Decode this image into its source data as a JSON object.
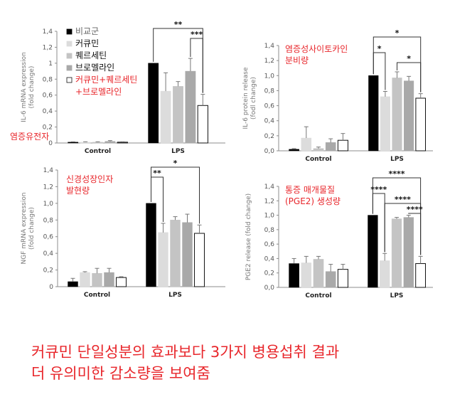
{
  "colors": {
    "black": "#111111",
    "series": [
      "#000000",
      "#dcdcdc",
      "#c4c4c4",
      "#a9a9a9",
      "#ffffff"
    ],
    "accent_red": "#e8262b",
    "axis": "#8c8c8c",
    "text": "#222222"
  },
  "legend": {
    "series_names": [
      "비교군",
      "커큐민",
      "퀘르세틴",
      "브로멜라인",
      "커큐민+퀘르세틴",
      "+브로멜라인"
    ]
  },
  "chart_data": [
    {
      "type": "bar",
      "ylabel_line1": "IL-6 mRNA expression",
      "ylabel_line2": "(fold change)",
      "annotation": [
        "염증유전자"
      ],
      "categories": [
        "Control",
        "LPS"
      ],
      "ticks": [
        "0",
        "0,2",
        "0,4",
        "0,6",
        "0,8",
        "1",
        "1,2",
        "1,4"
      ],
      "ylim": [
        0,
        1.4
      ],
      "series": [
        {
          "values": [
            0.01,
            1.0
          ],
          "errors": [
            0.005,
            0.0
          ]
        },
        {
          "values": [
            0.01,
            0.65
          ],
          "errors": [
            0.005,
            0.23
          ]
        },
        {
          "values": [
            0.01,
            0.71
          ],
          "errors": [
            0.005,
            0.06
          ]
        },
        {
          "values": [
            0.02,
            0.9
          ],
          "errors": [
            0.01,
            0.16
          ]
        },
        {
          "values": [
            0.01,
            0.47
          ],
          "errors": [
            0.005,
            0.14
          ]
        }
      ],
      "significance": [
        {
          "from": 0,
          "to": 4,
          "label": "**"
        },
        {
          "from": 3,
          "to": 4,
          "label": "***"
        }
      ]
    },
    {
      "type": "bar",
      "ylabel_line1": "IL-6 protein release",
      "ylabel_line2": "(fodl change)",
      "annotation": [
        "염증성사이토카인",
        "분비량"
      ],
      "categories": [
        "Control",
        "LPS"
      ],
      "ticks": [
        "0,0",
        "0,2",
        "0,4",
        "0,6",
        "0,8",
        "1,0",
        "1,2",
        "1,4"
      ],
      "ylim": [
        0,
        1.4
      ],
      "series": [
        {
          "values": [
            0.02,
            1.0
          ],
          "errors": [
            0.01,
            0.0
          ]
        },
        {
          "values": [
            0.17,
            0.72
          ],
          "errors": [
            0.15,
            0.07
          ]
        },
        {
          "values": [
            0.03,
            0.97
          ],
          "errors": [
            0.02,
            0.08
          ]
        },
        {
          "values": [
            0.11,
            0.93
          ],
          "errors": [
            0.05,
            0.06
          ]
        },
        {
          "values": [
            0.14,
            0.7
          ],
          "errors": [
            0.09,
            0.06
          ]
        }
      ],
      "significance": [
        {
          "from": 0,
          "to": 4,
          "label": "*"
        },
        {
          "from": 0,
          "to": 1,
          "label": "*"
        },
        {
          "from": 2,
          "to": 4,
          "label": "*"
        }
      ]
    },
    {
      "type": "bar",
      "ylabel_line1": "NGF mRNA expression",
      "ylabel_line2": "(fold change)",
      "annotation": [
        "신경성장인자",
        "발현량"
      ],
      "categories": [
        "Control",
        "LPS"
      ],
      "ticks": [
        "0",
        "0,2",
        "0,4",
        "0,6",
        "0,8",
        "1,0",
        "1,2",
        "1,4"
      ],
      "ylim": [
        0,
        1.4
      ],
      "series": [
        {
          "values": [
            0.06,
            1.0
          ],
          "errors": [
            0.04,
            0.0
          ]
        },
        {
          "values": [
            0.17,
            0.65
          ],
          "errors": [
            0.01,
            0.11
          ]
        },
        {
          "values": [
            0.16,
            0.8
          ],
          "errors": [
            0.06,
            0.04
          ]
        },
        {
          "values": [
            0.17,
            0.77
          ],
          "errors": [
            0.05,
            0.1
          ]
        },
        {
          "values": [
            0.11,
            0.64
          ],
          "errors": [
            0.01,
            0.1
          ]
        }
      ],
      "significance": [
        {
          "from": 0,
          "to": 4,
          "label": "*"
        },
        {
          "from": 0,
          "to": 1,
          "label": "**"
        }
      ]
    },
    {
      "type": "bar",
      "ylabel_line1": "PGE2 release (fold change)",
      "ylabel_line2": "",
      "annotation": [
        "통증 매개물질",
        "(PGE2) 생성량"
      ],
      "categories": [
        "Control",
        "LPS"
      ],
      "ticks": [
        "0,0",
        "0,2",
        "0,4",
        "0,6",
        "0,8",
        "1,0",
        "1,2",
        "1,4"
      ],
      "ylim": [
        0,
        1.4
      ],
      "series": [
        {
          "values": [
            0.33,
            1.0
          ],
          "errors": [
            0.07,
            0.0
          ]
        },
        {
          "values": [
            0.34,
            0.37
          ],
          "errors": [
            0.09,
            0.1
          ]
        },
        {
          "values": [
            0.39,
            0.95
          ],
          "errors": [
            0.04,
            0.02
          ]
        },
        {
          "values": [
            0.22,
            0.97
          ],
          "errors": [
            0.1,
            0.03
          ]
        },
        {
          "values": [
            0.25,
            0.33
          ],
          "errors": [
            0.07,
            0.1
          ]
        }
      ],
      "significance": [
        {
          "from": 0,
          "to": 4,
          "label": "****"
        },
        {
          "from": 0,
          "to": 1,
          "label": "****"
        },
        {
          "from": 1,
          "to": 4,
          "label": "****"
        },
        {
          "from": 3,
          "to": 4,
          "label": "****"
        }
      ]
    }
  ],
  "caption": {
    "line1": "커큐민 단일성분의 효과보다 3가지 병용섭취 결과",
    "line2": "더 유의미한 감소량을 보여줌"
  }
}
